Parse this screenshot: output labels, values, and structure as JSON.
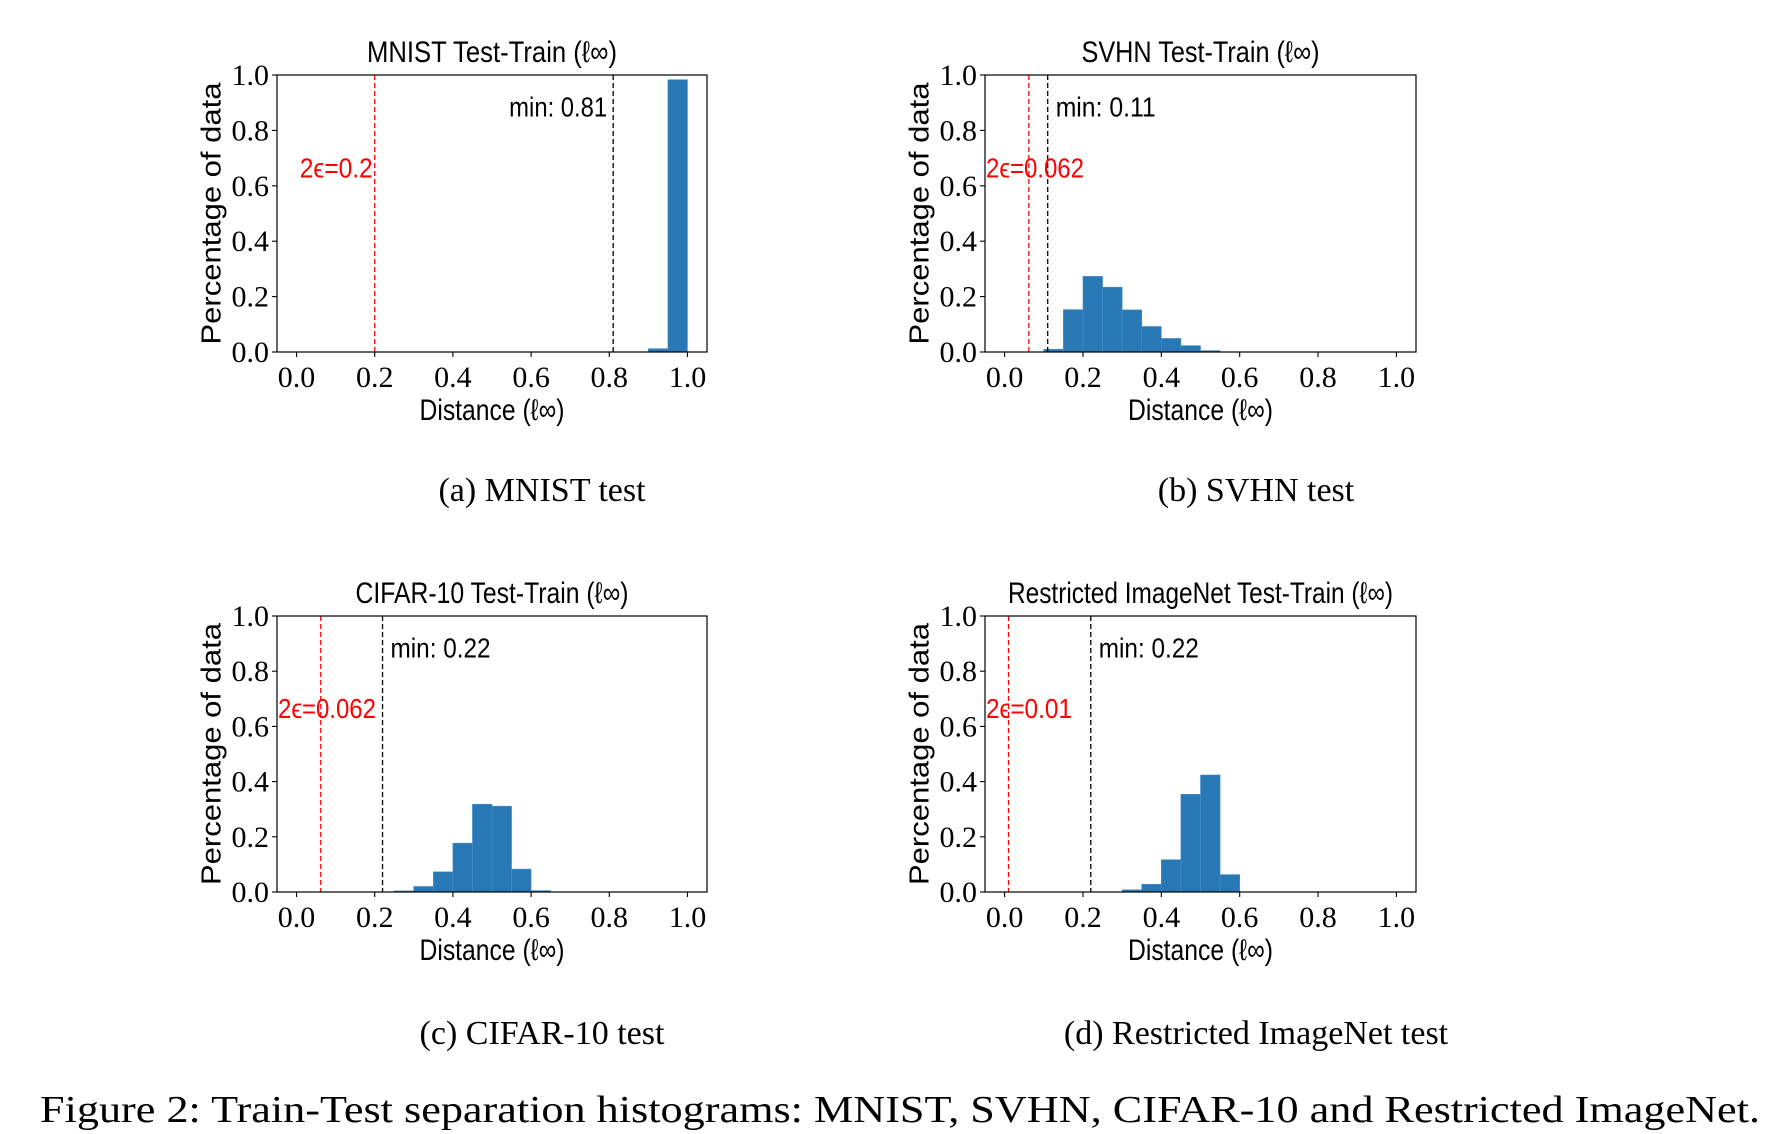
{
  "figure_caption": "Figure 2: Train-Test separation histograms: MNIST, SVHN, CIFAR-10 and Restricted ImageNet.",
  "colors": {
    "bar": "#2878b5",
    "epsilon_line": "#ff0000",
    "min_line": "#000000"
  },
  "chart_data": [
    {
      "type": "bar",
      "subcaption": "(a) MNIST test",
      "title": "MNIST Test-Train (ℓ∞)",
      "xlabel": "Distance (ℓ∞)",
      "ylabel": "Percentage of data",
      "xlim": [
        -0.05,
        1.05
      ],
      "ylim": [
        0,
        1.0
      ],
      "xticks": [
        "0.0",
        "0.2",
        "0.4",
        "0.6",
        "0.8",
        "1.0"
      ],
      "yticks": [
        "0.0",
        "0.2",
        "0.4",
        "0.6",
        "0.8",
        "1.0"
      ],
      "bin_width": 0.05,
      "bins": [
        {
          "start": 0.9,
          "value": 0.012
        },
        {
          "start": 0.95,
          "value": 0.983
        }
      ],
      "epsilon_line": {
        "x": 0.2,
        "label": "2ϵ=0.2"
      },
      "min_line": {
        "x": 0.81,
        "label": "min:  0.81"
      }
    },
    {
      "type": "bar",
      "subcaption": "(b) SVHN test",
      "title": "SVHN Test-Train (ℓ∞)",
      "xlabel": "Distance (ℓ∞)",
      "ylabel": "Percentage of data",
      "xlim": [
        -0.05,
        1.05
      ],
      "ylim": [
        0,
        1.0
      ],
      "xticks": [
        "0.0",
        "0.2",
        "0.4",
        "0.6",
        "0.8",
        "1.0"
      ],
      "yticks": [
        "0.0",
        "0.2",
        "0.4",
        "0.6",
        "0.8",
        "1.0"
      ],
      "bin_width": 0.05,
      "bins": [
        {
          "start": 0.1,
          "value": 0.01
        },
        {
          "start": 0.15,
          "value": 0.153
        },
        {
          "start": 0.2,
          "value": 0.273
        },
        {
          "start": 0.25,
          "value": 0.234
        },
        {
          "start": 0.3,
          "value": 0.152
        },
        {
          "start": 0.35,
          "value": 0.092
        },
        {
          "start": 0.4,
          "value": 0.049
        },
        {
          "start": 0.45,
          "value": 0.023
        },
        {
          "start": 0.5,
          "value": 0.005
        }
      ],
      "epsilon_line": {
        "x": 0.062,
        "label": "2ϵ=0.062"
      },
      "min_line": {
        "x": 0.11,
        "label": "min:  0.11"
      }
    },
    {
      "type": "bar",
      "subcaption": "(c) CIFAR-10 test",
      "title": "CIFAR-10 Test-Train (ℓ∞)",
      "xlabel": "Distance (ℓ∞)",
      "ylabel": "Percentage of data",
      "xlim": [
        -0.05,
        1.05
      ],
      "ylim": [
        0,
        1.0
      ],
      "xticks": [
        "0.0",
        "0.2",
        "0.4",
        "0.6",
        "0.8",
        "1.0"
      ],
      "yticks": [
        "0.0",
        "0.2",
        "0.4",
        "0.6",
        "0.8",
        "1.0"
      ],
      "bin_width": 0.05,
      "bins": [
        {
          "start": 0.25,
          "value": 0.004
        },
        {
          "start": 0.3,
          "value": 0.02
        },
        {
          "start": 0.35,
          "value": 0.073
        },
        {
          "start": 0.4,
          "value": 0.177
        },
        {
          "start": 0.45,
          "value": 0.318
        },
        {
          "start": 0.5,
          "value": 0.311
        },
        {
          "start": 0.55,
          "value": 0.083
        },
        {
          "start": 0.6,
          "value": 0.005
        }
      ],
      "epsilon_line": {
        "x": 0.062,
        "label": "2ϵ=0.062"
      },
      "min_line": {
        "x": 0.22,
        "label": "min:  0.22"
      }
    },
    {
      "type": "bar",
      "subcaption": "(d) Restricted ImageNet test",
      "title": "Restricted ImageNet Test-Train (ℓ∞)",
      "xlabel": "Distance (ℓ∞)",
      "ylabel": "Percentage of data",
      "xlim": [
        -0.05,
        1.05
      ],
      "ylim": [
        0,
        1.0
      ],
      "xticks": [
        "0.0",
        "0.2",
        "0.4",
        "0.6",
        "0.8",
        "1.0"
      ],
      "yticks": [
        "0.0",
        "0.2",
        "0.4",
        "0.6",
        "0.8",
        "1.0"
      ],
      "bin_width": 0.05,
      "bins": [
        {
          "start": 0.3,
          "value": 0.008
        },
        {
          "start": 0.35,
          "value": 0.028
        },
        {
          "start": 0.4,
          "value": 0.117
        },
        {
          "start": 0.45,
          "value": 0.354
        },
        {
          "start": 0.5,
          "value": 0.424
        },
        {
          "start": 0.55,
          "value": 0.063
        }
      ],
      "epsilon_line": {
        "x": 0.01,
        "label": "2ϵ=0.01"
      },
      "min_line": {
        "x": 0.22,
        "label": "min:  0.22"
      }
    }
  ]
}
